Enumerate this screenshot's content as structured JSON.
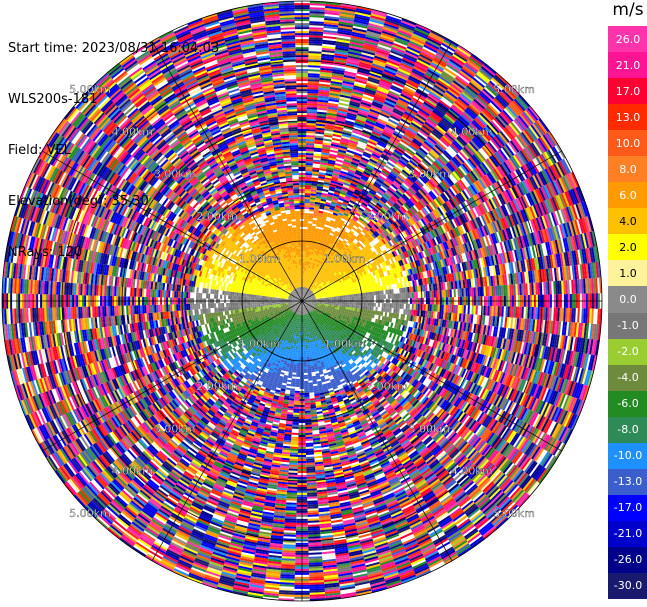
{
  "header": {
    "start_time": "Start time: 2023/08/31 16:04:03",
    "instrument": "WLS200s-181",
    "field": "Field: VEL",
    "elevation": "Elevation(deg): 35.30",
    "nrays": "NRays: 120"
  },
  "chart_data": {
    "type": "heatmap",
    "projection": "polar-ppi",
    "field": "VEL",
    "units": "m/s",
    "elevation_deg": 35.3,
    "nrays": 120,
    "range_rings_km": [
      1.0,
      2.0,
      3.0,
      4.0,
      5.0
    ],
    "ring_labels": [
      "1.00km",
      "2.00km",
      "3.00km",
      "4.00km",
      "5.00km"
    ],
    "near_field_pattern": {
      "north_sector_ms": [
        2.0,
        8.0
      ],
      "south_sector_ms": [
        -13.0,
        -1.0
      ],
      "center_ms": [
        -1.0,
        1.0
      ],
      "coherent_range_km": [
        0.0,
        1.8
      ]
    },
    "colorbar": {
      "unit": "m/s",
      "ticks": [
        "26.0",
        "21.0",
        "17.0",
        "13.0",
        "10.0",
        "8.0",
        "6.0",
        "4.0",
        "2.0",
        "1.0",
        "0.0",
        "-1.0",
        "-2.0",
        "-4.0",
        "-6.0",
        "-8.0",
        "-10.0",
        "-13.0",
        "-17.0",
        "-21.0",
        "-26.0",
        "-30.0"
      ],
      "colors": [
        "#ff33aa",
        "#ff1493",
        "#ff0033",
        "#ff2a00",
        "#ff5a1a",
        "#ff7f24",
        "#ff9a00",
        "#ffc000",
        "#ffff00",
        "#fff29a",
        "#8a8a8a",
        "#777777",
        "#9acd32",
        "#6e8b3d",
        "#228b22",
        "#2e8b57",
        "#1e90ff",
        "#3a5fcd",
        "#0000ff",
        "#0000cd",
        "#00008b",
        "#191970"
      ]
    }
  }
}
